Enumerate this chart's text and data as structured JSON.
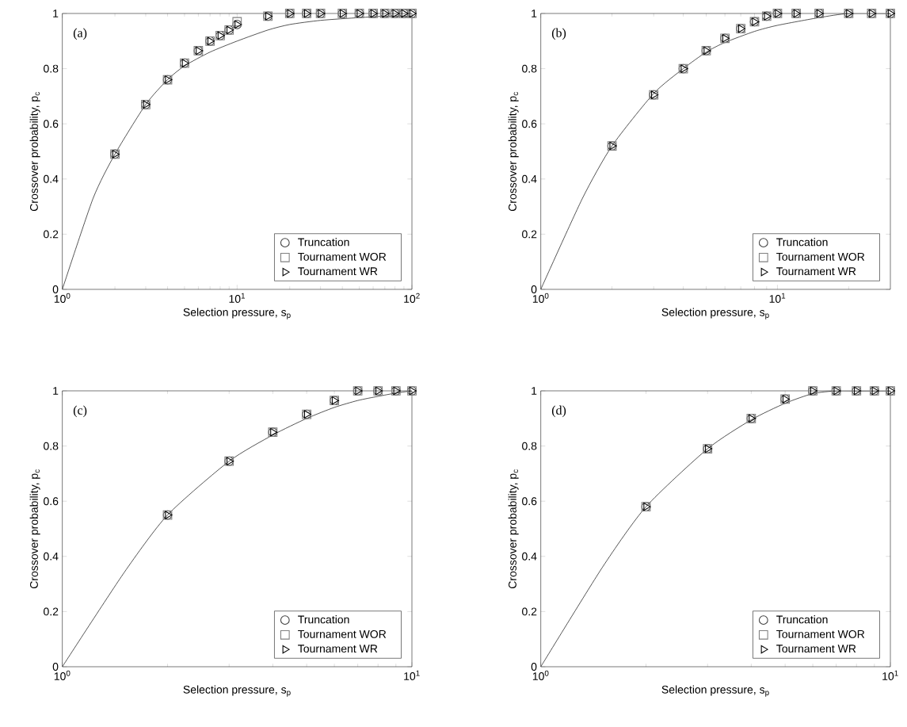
{
  "chart_data": [
    {
      "type": "scatter",
      "annotations": [
        "(a)"
      ],
      "xlabel": "Selection pressure, s$_{p}$",
      "ylabel": "Crossover probability, p$_{c}$",
      "log": "x",
      "legend": "bottom right",
      "xlim": [
        1,
        100
      ],
      "ylim": [
        0,
        1
      ],
      "xticks": [
        {
          "value": 1,
          "label": "10$^{0}$"
        },
        {
          "value": 10,
          "label": "10$^{1}$"
        },
        {
          "value": 100,
          "label": "10$^{2}$"
        }
      ],
      "yticks": [
        0,
        0.2,
        0.4,
        0.6,
        0.8,
        1
      ],
      "x": [
        2,
        3,
        4,
        5,
        6,
        7,
        8,
        9,
        10,
        15,
        20,
        25,
        30,
        40,
        50,
        60,
        70,
        80,
        90,
        100
      ],
      "series": [
        {
          "name": "Truncation",
          "color": "#404040",
          "marker": "circle",
          "values": [
            0.49,
            0.67,
            0.76,
            0.82,
            0.865,
            0.9,
            0.92,
            0.94,
            0.96,
            0.99,
            1,
            1,
            1,
            1,
            1,
            1,
            1,
            1,
            1,
            1
          ]
        },
        {
          "name": "Tournament WOR",
          "color": "#808080",
          "marker": "square",
          "values": [
            0.49,
            0.67,
            0.76,
            0.82,
            0.865,
            0.9,
            0.92,
            0.94,
            0.97,
            0.99,
            1,
            1,
            1,
            1,
            1,
            1,
            1,
            1,
            1,
            1
          ]
        },
        {
          "name": "Tournament WR",
          "color": "#000000",
          "marker": "triangle",
          "values": [
            0.49,
            0.67,
            0.76,
            0.82,
            0.865,
            0.9,
            0.92,
            0.94,
            0.96,
            0.99,
            1,
            1,
            1,
            1,
            1,
            1,
            1,
            1,
            1,
            1
          ]
        },
        {
          "type": "line",
          "color": "#000000",
          "marker": "none",
          "x": [
            1,
            1.5,
            2,
            3,
            4,
            5,
            7,
            10,
            15,
            20,
            30,
            50,
            70,
            100
          ],
          "values": [
            0,
            0.33,
            0.49,
            0.67,
            0.76,
            0.81,
            0.86,
            0.9,
            0.94,
            0.96,
            0.975,
            0.985,
            0.99,
            0.99
          ]
        }
      ]
    },
    {
      "type": "scatter",
      "annotations": [
        "(b)"
      ],
      "xlabel": "Selection pressure, s$_{p}$",
      "ylabel": "Crossover probability, p$_{c}$",
      "log": "x",
      "legend": "bottom right",
      "xlim": [
        1,
        30
      ],
      "ylim": [
        0,
        1
      ],
      "xticks": [
        {
          "value": 1,
          "label": "10$^{0}$"
        },
        {
          "value": 10,
          "label": "10$^{1}$"
        }
      ],
      "yticks": [
        0,
        0.2,
        0.4,
        0.6,
        0.8,
        1
      ],
      "x": [
        2,
        3,
        4,
        5,
        6,
        7,
        8,
        9,
        10,
        12,
        15,
        20,
        25,
        30
      ],
      "series": [
        {
          "name": "Truncation",
          "color": "#404040",
          "marker": "circle",
          "values": [
            0.52,
            0.705,
            0.8,
            0.865,
            0.91,
            0.945,
            0.97,
            0.99,
            1,
            1,
            1,
            1,
            1,
            1
          ]
        },
        {
          "name": "Tournament WOR",
          "color": "#808080",
          "marker": "square",
          "values": [
            0.52,
            0.705,
            0.8,
            0.865,
            0.91,
            0.945,
            0.97,
            0.99,
            1,
            1,
            1,
            1,
            1,
            1
          ]
        },
        {
          "name": "Tournament WR",
          "color": "#000000",
          "marker": "triangle",
          "values": [
            0.52,
            0.705,
            0.8,
            0.865,
            0.91,
            0.945,
            0.97,
            0.99,
            1,
            1,
            1,
            1,
            1,
            1
          ]
        },
        {
          "type": "line",
          "color": "#000000",
          "marker": "none",
          "x": [
            1,
            1.5,
            2,
            3,
            4,
            5,
            6,
            8,
            10,
            15,
            20,
            30
          ],
          "values": [
            0,
            0.33,
            0.52,
            0.71,
            0.8,
            0.86,
            0.895,
            0.935,
            0.957,
            0.985,
            1,
            1
          ]
        }
      ]
    },
    {
      "type": "scatter",
      "annotations": [
        "(c)"
      ],
      "xlabel": "Selection pressure, s$_{p}$",
      "ylabel": "Crossover probability, p$_{c}$",
      "log": "x",
      "legend": "bottom right",
      "xlim": [
        1,
        10
      ],
      "ylim": [
        0,
        1
      ],
      "xticks": [
        {
          "value": 1,
          "label": "10$^{0}$"
        },
        {
          "value": 10,
          "label": "10$^{1}$"
        }
      ],
      "yticks": [
        0,
        0.2,
        0.4,
        0.6,
        0.8,
        1
      ],
      "x": [
        2,
        3,
        4,
        5,
        6,
        7,
        8,
        9,
        10
      ],
      "series": [
        {
          "name": "Truncation",
          "color": "#404040",
          "marker": "circle",
          "values": [
            0.55,
            0.745,
            0.85,
            0.915,
            0.965,
            1,
            1,
            1,
            1
          ]
        },
        {
          "name": "Tournament WOR",
          "color": "#808080",
          "marker": "square",
          "values": [
            0.55,
            0.745,
            0.85,
            0.915,
            0.965,
            1,
            1,
            1,
            1
          ]
        },
        {
          "name": "Tournament WR",
          "color": "#000000",
          "marker": "triangle",
          "values": [
            0.55,
            0.745,
            0.85,
            0.915,
            0.965,
            1,
            1,
            1,
            1
          ]
        },
        {
          "type": "line",
          "color": "#000000",
          "marker": "none",
          "x": [
            1,
            1.5,
            2,
            3,
            4,
            5,
            6,
            7,
            8,
            9,
            10
          ],
          "values": [
            0,
            0.34,
            0.55,
            0.745,
            0.84,
            0.9,
            0.94,
            0.965,
            0.98,
            0.992,
            1
          ]
        }
      ]
    },
    {
      "type": "scatter",
      "annotations": [
        "(d)"
      ],
      "xlabel": "Selection pressure, s$_{p}$",
      "ylabel": "Crossover probability, p$_{c}$",
      "log": "x",
      "legend": "bottom right",
      "xlim": [
        1,
        10
      ],
      "ylim": [
        0,
        1
      ],
      "xticks": [
        {
          "value": 1,
          "label": "10$^{0}$"
        },
        {
          "value": 10,
          "label": "10$^{1}$"
        }
      ],
      "yticks": [
        0,
        0.2,
        0.4,
        0.6,
        0.8,
        1
      ],
      "x": [
        2,
        3,
        4,
        5,
        6,
        7,
        8,
        9,
        10
      ],
      "series": [
        {
          "name": "Truncation",
          "color": "#404040",
          "marker": "circle",
          "values": [
            0.58,
            0.79,
            0.9,
            0.97,
            1,
            1,
            1,
            1,
            1
          ]
        },
        {
          "name": "Tournament WOR",
          "color": "#808080",
          "marker": "square",
          "values": [
            0.58,
            0.79,
            0.9,
            0.97,
            1,
            1,
            1,
            1,
            1
          ]
        },
        {
          "name": "Tournament WR",
          "color": "#000000",
          "marker": "triangle",
          "values": [
            0.58,
            0.79,
            0.9,
            0.97,
            1,
            1,
            1,
            1,
            1
          ]
        },
        {
          "type": "line",
          "color": "#000000",
          "marker": "none",
          "x": [
            1,
            1.5,
            2,
            3,
            4,
            5,
            6,
            7,
            8,
            10
          ],
          "values": [
            0,
            0.36,
            0.58,
            0.79,
            0.895,
            0.955,
            0.99,
            1,
            1,
            1
          ]
        }
      ]
    }
  ]
}
